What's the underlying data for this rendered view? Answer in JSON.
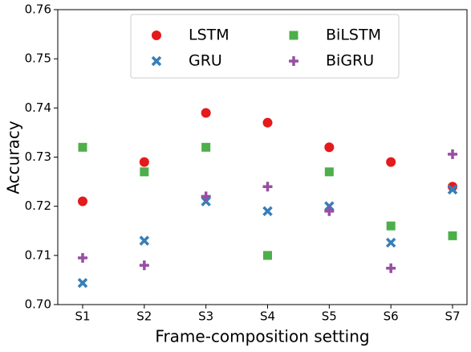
{
  "chart_data": {
    "type": "scatter",
    "x_label": "Frame-composition setting",
    "y_label": "Accuracy",
    "categories": [
      "S1",
      "S2",
      "S3",
      "S4",
      "S5",
      "S6",
      "S7"
    ],
    "ylim": [
      0.7,
      0.76
    ],
    "yticks": [
      {
        "value": 0.7,
        "label": "0.70"
      },
      0.71,
      0.72,
      0.73,
      0.74,
      0.75,
      0.76
    ],
    "grid": false,
    "legend": "upper center",
    "series": [
      {
        "name": "LSTM",
        "color": "#e41a1c",
        "marker": "circle",
        "values": [
          0.721,
          0.729,
          0.739,
          0.737,
          0.732,
          0.729,
          0.724
        ]
      },
      {
        "name": "GRU",
        "color": "#377eb8",
        "marker": "x",
        "values": [
          0.7044,
          0.713,
          0.721,
          0.719,
          0.72,
          0.7126,
          0.7234
        ]
      },
      {
        "name": "BiLSTM",
        "color": "#4daf4a",
        "marker": "square",
        "values": [
          0.732,
          0.727,
          0.732,
          0.71,
          0.727,
          0.716,
          0.714
        ]
      },
      {
        "name": "BiGRU",
        "color": "#984ea3",
        "marker": "plus",
        "values": [
          0.7095,
          0.708,
          0.722,
          0.724,
          0.719,
          0.7074,
          0.7306
        ]
      }
    ]
  }
}
